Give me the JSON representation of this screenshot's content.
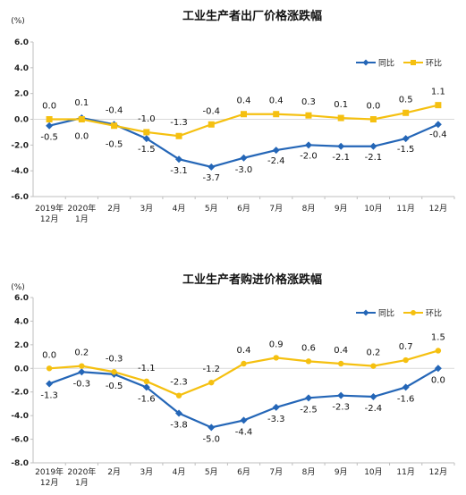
{
  "chart_data": [
    {
      "type": "line",
      "title": "工业生产者出厂价格涨跌幅",
      "unit": "(%)",
      "categories": [
        "2019年\n12月",
        "2020年\n1月",
        "2月",
        "3月",
        "4月",
        "5月",
        "6月",
        "7月",
        "8月",
        "9月",
        "10月",
        "11月",
        "12月"
      ],
      "ylim": [
        -6.0,
        6.0
      ],
      "yticks": [
        "6.0",
        "4.0",
        "2.0",
        "0.0",
        "-2.0",
        "-4.0",
        "-6.0"
      ],
      "legend_position": "top-right",
      "series": [
        {
          "name": "同比",
          "color": "#2466b7",
          "marker": "diamond",
          "values": [
            -0.5,
            0.1,
            -0.4,
            -1.5,
            -3.1,
            -3.7,
            -3.0,
            -2.4,
            -2.0,
            -2.1,
            -2.1,
            -1.5,
            -0.4
          ],
          "labels": [
            "-0.5",
            "0.1",
            "-0.4",
            "-1.5",
            "-3.1",
            "-3.7",
            "-3.0",
            "-2.4",
            "-2.0",
            "-2.1",
            "-2.1",
            "-1.5",
            "-0.4"
          ]
        },
        {
          "name": "环比",
          "color": "#f5c010",
          "marker": "square",
          "values": [
            0.0,
            0.0,
            -0.5,
            -1.0,
            -1.3,
            -0.4,
            0.4,
            0.4,
            0.3,
            0.1,
            0.0,
            0.5,
            1.1
          ],
          "labels": [
            "0.0",
            "0.0",
            "-0.5",
            "-1.0",
            "-1.3",
            "-0.4",
            "0.4",
            "0.4",
            "0.3",
            "0.1",
            "0.0",
            "0.5",
            "1.1"
          ]
        }
      ]
    },
    {
      "type": "line",
      "title": "工业生产者购进价格涨跌幅",
      "unit": "(%)",
      "categories": [
        "2019年\n12月",
        "2020年\n1月",
        "2月",
        "3月",
        "4月",
        "5月",
        "6月",
        "7月",
        "8月",
        "9月",
        "10月",
        "11月",
        "12月"
      ],
      "ylim": [
        -8.0,
        6.0
      ],
      "yticks": [
        "6.0",
        "4.0",
        "2.0",
        "0.0",
        "-2.0",
        "-4.0",
        "-6.0",
        "-8.0"
      ],
      "legend_position": "top-right",
      "series": [
        {
          "name": "同比",
          "color": "#2466b7",
          "marker": "diamond",
          "values": [
            -1.3,
            -0.3,
            -0.5,
            -1.6,
            -3.8,
            -5.0,
            -4.4,
            -3.3,
            -2.5,
            -2.3,
            -2.4,
            -1.6,
            0.0
          ],
          "labels": [
            "-1.3",
            "-0.3",
            "-0.5",
            "-1.6",
            "-3.8",
            "-5.0",
            "-4.4",
            "-3.3",
            "-2.5",
            "-2.3",
            "-2.4",
            "-1.6",
            "0.0"
          ]
        },
        {
          "name": "环比",
          "color": "#f5c010",
          "marker": "circle",
          "values": [
            0.0,
            0.2,
            -0.3,
            -1.1,
            -2.3,
            -1.2,
            0.4,
            0.9,
            0.6,
            0.4,
            0.2,
            0.7,
            1.5
          ],
          "labels": [
            "0.0",
            "0.2",
            "-0.3",
            "-1.1",
            "-2.3",
            "-1.2",
            "0.4",
            "0.9",
            "0.6",
            "0.4",
            "0.2",
            "0.7",
            "1.5"
          ]
        }
      ]
    }
  ]
}
